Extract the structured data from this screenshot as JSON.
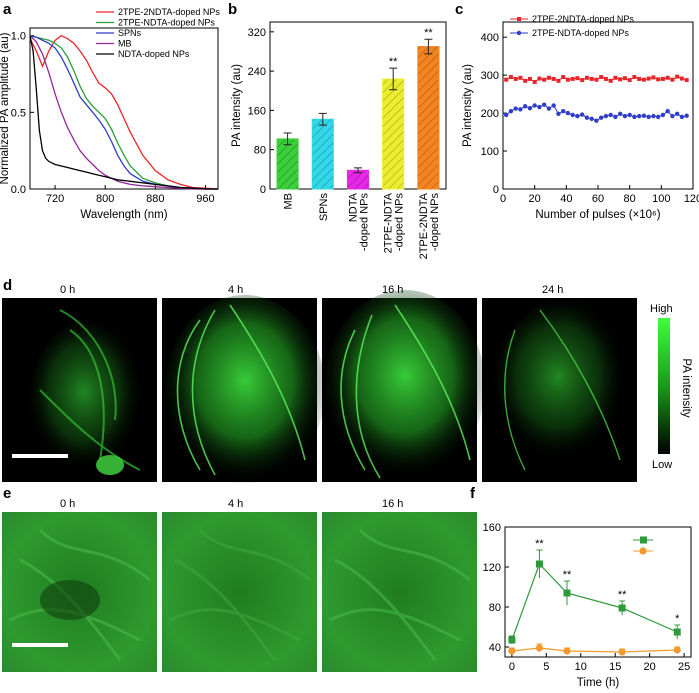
{
  "panels": {
    "a": "a",
    "b": "b",
    "c": "c",
    "d": "d",
    "e": "e",
    "f": "f"
  },
  "colors": {
    "red": "#e8262a",
    "green": "#2a9d3c",
    "blue": "#2f3dc8",
    "purple": "#92279a",
    "black": "#000000",
    "f_green": "#2f9a3a",
    "f_orange": "#f39a2f"
  },
  "chart_data": [
    {
      "id": "a",
      "type": "line",
      "title": "",
      "xlabel": "Wavelength (nm)",
      "ylabel": "Normalized PA amplitude (au)",
      "xlim": [
        680,
        980
      ],
      "ylim": [
        0,
        1.05
      ],
      "xticks": [
        "720",
        "800",
        "880",
        "960"
      ],
      "xtick_values": [
        720,
        800,
        880,
        960
      ],
      "yticks": [
        "0.0",
        "0.5",
        "1.0"
      ],
      "ytick_values": [
        0,
        0.5,
        1.0
      ],
      "legend_position": "top-right",
      "series": [
        {
          "name": "2TPE-2NDTA-doped NPs",
          "color": "#e8262a",
          "x": [
            680,
            690,
            700,
            710,
            720,
            730,
            740,
            750,
            760,
            770,
            780,
            790,
            800,
            810,
            820,
            830,
            840,
            860,
            880,
            900,
            920,
            940,
            960,
            980
          ],
          "y": [
            0.98,
            0.9,
            0.8,
            0.9,
            0.97,
            1.0,
            0.98,
            0.95,
            0.9,
            0.84,
            0.76,
            0.69,
            0.66,
            0.62,
            0.55,
            0.46,
            0.37,
            0.22,
            0.12,
            0.06,
            0.03,
            0.01,
            0.005,
            0.0
          ]
        },
        {
          "name": "2TPE-NDTA-doped NPs",
          "color": "#2a9d3c",
          "x": [
            680,
            690,
            700,
            710,
            720,
            730,
            740,
            750,
            760,
            770,
            780,
            790,
            800,
            810,
            820,
            830,
            840,
            860,
            880,
            900,
            920,
            940,
            960,
            980
          ],
          "y": [
            1.0,
            0.99,
            0.98,
            0.97,
            0.95,
            0.92,
            0.86,
            0.77,
            0.67,
            0.59,
            0.54,
            0.5,
            0.46,
            0.39,
            0.3,
            0.22,
            0.15,
            0.07,
            0.04,
            0.02,
            0.01,
            0.005,
            0.0,
            0.0
          ]
        },
        {
          "name": "SPNs",
          "color": "#2f3dc8",
          "x": [
            680,
            690,
            700,
            710,
            720,
            730,
            740,
            750,
            760,
            770,
            780,
            790,
            800,
            810,
            820,
            830,
            840,
            860,
            880,
            900,
            920,
            940,
            960,
            980
          ],
          "y": [
            1.0,
            0.99,
            0.97,
            0.95,
            0.92,
            0.86,
            0.78,
            0.69,
            0.6,
            0.55,
            0.5,
            0.45,
            0.39,
            0.31,
            0.22,
            0.15,
            0.1,
            0.05,
            0.03,
            0.02,
            0.01,
            0.005,
            0.0,
            0.0
          ]
        },
        {
          "name": "MB",
          "color": "#92279a",
          "x": [
            680,
            690,
            700,
            710,
            720,
            730,
            740,
            750,
            760,
            770,
            780,
            790,
            800,
            810,
            820,
            840,
            860,
            880,
            900,
            920,
            940,
            960,
            980
          ],
          "y": [
            1.0,
            0.96,
            0.88,
            0.76,
            0.62,
            0.5,
            0.4,
            0.32,
            0.25,
            0.2,
            0.16,
            0.12,
            0.09,
            0.07,
            0.05,
            0.03,
            0.02,
            0.015,
            0.01,
            0.005,
            0.0,
            0.0,
            0.0
          ]
        },
        {
          "name": "NDTA-doped NPs",
          "color": "#000000",
          "x": [
            680,
            685,
            690,
            695,
            700,
            705,
            710,
            720,
            730,
            740,
            750,
            760,
            770,
            780,
            790,
            800,
            820,
            840,
            860,
            880,
            900,
            920,
            940,
            960,
            980
          ],
          "y": [
            1.0,
            0.9,
            0.65,
            0.38,
            0.25,
            0.2,
            0.18,
            0.16,
            0.15,
            0.14,
            0.13,
            0.12,
            0.11,
            0.1,
            0.09,
            0.08,
            0.06,
            0.05,
            0.04,
            0.03,
            0.02,
            0.01,
            0.005,
            0.0,
            0.0
          ]
        }
      ]
    },
    {
      "id": "b",
      "type": "bar",
      "title": "",
      "xlabel": "",
      "ylabel": "PA intensity (au)",
      "ylim": [
        0,
        340
      ],
      "yticks": [
        "0",
        "80",
        "160",
        "240",
        "320"
      ],
      "ytick_values": [
        0,
        80,
        160,
        240,
        320
      ],
      "categories": [
        "MB",
        "SPNs",
        "NDTA\n-doped NPs",
        "2TPE-NDTA\n-doped NPs",
        "2TPE-2NDTA\n-doped NPs"
      ],
      "category_lines": [
        [
          "MB"
        ],
        [
          "SPNs"
        ],
        [
          "NDTA",
          "-doped NPs"
        ],
        [
          "2TPE-NDTA",
          "-doped NPs"
        ],
        [
          "2TPE-2NDTA",
          "-doped NPs"
        ]
      ],
      "values": [
        102,
        142,
        38,
        224,
        290
      ],
      "errors": [
        12,
        12,
        5,
        22,
        15
      ],
      "colors": [
        "#3ccf3c",
        "#33d8e6",
        "#e629e6",
        "#eded2f",
        "#f3841f"
      ],
      "annotations": [
        "",
        "",
        "",
        "**",
        "**"
      ]
    },
    {
      "id": "c",
      "type": "line",
      "title": "",
      "xlabel": "Number of pulses (×10⁶)",
      "ylabel": "PA intensity (au)",
      "xlim": [
        0,
        120
      ],
      "ylim": [
        0,
        440
      ],
      "xticks": [
        "0",
        "20",
        "40",
        "60",
        "80",
        "100",
        "120"
      ],
      "xtick_values": [
        0,
        20,
        40,
        60,
        80,
        100,
        120
      ],
      "yticks": [
        "0",
        "100",
        "200",
        "300",
        "400"
      ],
      "ytick_values": [
        0,
        100,
        200,
        300,
        400
      ],
      "legend_position": "top-left",
      "series": [
        {
          "name": "2TPE-2NDTA-doped NPs",
          "color": "#e8262a",
          "marker": "square",
          "x": [
            2,
            5,
            8,
            11,
            14,
            17,
            20,
            23,
            26,
            29,
            32,
            35,
            38,
            41,
            44,
            47,
            50,
            53,
            56,
            59,
            62,
            65,
            68,
            71,
            74,
            77,
            80,
            83,
            86,
            89,
            92,
            95,
            98,
            101,
            104,
            107,
            110,
            113,
            116
          ],
          "y": [
            288,
            295,
            290,
            293,
            285,
            290,
            282,
            291,
            288,
            293,
            290,
            285,
            295,
            288,
            290,
            292,
            287,
            293,
            290,
            288,
            295,
            290,
            285,
            293,
            289,
            292,
            287,
            295,
            290,
            288,
            291,
            294,
            289,
            290,
            293,
            288,
            296,
            291,
            287
          ]
        },
        {
          "name": "2TPE-NDTA-doped NPs",
          "color": "#2f3dc8",
          "marker": "circle",
          "x": [
            2,
            5,
            8,
            11,
            14,
            17,
            20,
            23,
            26,
            29,
            32,
            35,
            38,
            41,
            44,
            47,
            50,
            53,
            56,
            59,
            62,
            65,
            68,
            71,
            74,
            77,
            80,
            83,
            86,
            89,
            92,
            95,
            98,
            101,
            104,
            107,
            110,
            113,
            116
          ],
          "y": [
            195,
            205,
            212,
            210,
            218,
            213,
            220,
            216,
            222,
            212,
            220,
            198,
            205,
            200,
            195,
            192,
            196,
            188,
            185,
            180,
            188,
            192,
            195,
            190,
            198,
            192,
            195,
            190,
            192,
            193,
            190,
            192,
            190,
            195,
            205,
            192,
            198,
            190,
            193
          ]
        }
      ]
    },
    {
      "id": "f",
      "type": "line",
      "title": "",
      "xlabel": "Time (h)",
      "ylabel": "PA intensity (au)",
      "xlim": [
        -1,
        26
      ],
      "ylim": [
        30,
        160
      ],
      "xticks": [
        "0",
        "5",
        "10",
        "15",
        "20",
        "25"
      ],
      "xtick_values": [
        0,
        5,
        10,
        15,
        20,
        25
      ],
      "yticks": [
        "40",
        "80",
        "120",
        "160"
      ],
      "ytick_values": [
        40,
        80,
        120,
        160
      ],
      "legend_position": "top-right",
      "series": [
        {
          "name": "",
          "color": "#2f9a3a",
          "marker": "square",
          "x": [
            0,
            4,
            8,
            16,
            24
          ],
          "y": [
            47,
            123,
            94,
            79,
            55
          ],
          "errors": [
            4,
            14,
            12,
            7,
            7
          ],
          "annotations": [
            "",
            "**",
            "**",
            "**",
            "*"
          ]
        },
        {
          "name": "",
          "color": "#f39a2f",
          "marker": "circle",
          "x": [
            0,
            4,
            8,
            16,
            24
          ],
          "y": [
            36,
            39,
            36,
            35,
            37
          ],
          "errors": [
            3,
            4,
            3,
            3,
            3
          ],
          "annotations": [
            "",
            "",
            "",
            "",
            ""
          ]
        }
      ]
    }
  ],
  "panel_d": {
    "time_labels": [
      "0 h",
      "4 h",
      "16 h",
      "24 h"
    ],
    "colorbar_high": "High",
    "colorbar_low": "Low",
    "colorbar_label": "PA intensity"
  },
  "panel_e": {
    "time_labels": [
      "0 h",
      "4 h",
      "16 h"
    ]
  }
}
